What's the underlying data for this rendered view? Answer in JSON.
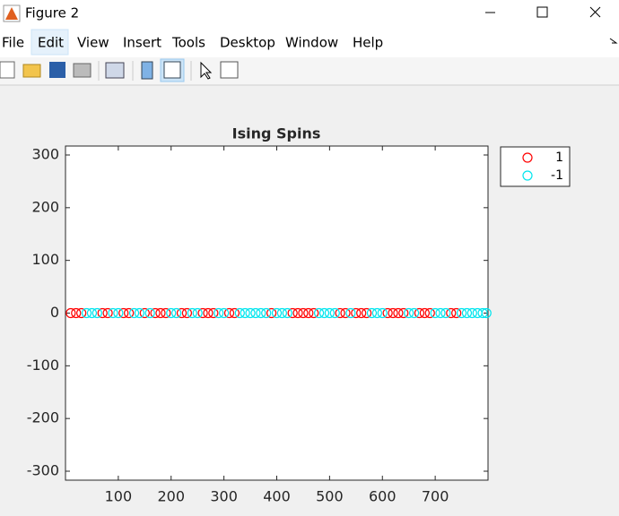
{
  "window": {
    "title": "Figure 2",
    "menu": [
      "File",
      "Edit",
      "View",
      "Insert",
      "Tools",
      "Desktop",
      "Window",
      "Help"
    ]
  },
  "chart_data": {
    "type": "scatter",
    "title": "Ising Spins",
    "series": [
      {
        "name": "1",
        "color": "#ff0000",
        "x": [
          10,
          20,
          30,
          70,
          80,
          110,
          120,
          150,
          170,
          180,
          190,
          220,
          230,
          260,
          270,
          280,
          310,
          320,
          390,
          430,
          440,
          450,
          460,
          470,
          520,
          530,
          550,
          560,
          570,
          610,
          620,
          630,
          640,
          670,
          680,
          690,
          730,
          740
        ],
        "values": [
          0,
          0,
          0,
          0,
          0,
          0,
          0,
          0,
          0,
          0,
          0,
          0,
          0,
          0,
          0,
          0,
          0,
          0,
          0,
          0,
          0,
          0,
          0,
          0,
          0,
          0,
          0,
          0,
          0,
          0,
          0,
          0,
          0,
          0,
          0,
          0,
          0,
          0
        ]
      },
      {
        "name": "-1",
        "color": "#00e5ee",
        "x": [
          40,
          50,
          60,
          90,
          100,
          130,
          140,
          160,
          200,
          210,
          240,
          250,
          290,
          300,
          330,
          340,
          350,
          360,
          370,
          380,
          400,
          410,
          420,
          480,
          490,
          500,
          510,
          540,
          580,
          590,
          600,
          650,
          660,
          700,
          710,
          720,
          750,
          760,
          770,
          780,
          790,
          797
        ],
        "values": [
          0,
          0,
          0,
          0,
          0,
          0,
          0,
          0,
          0,
          0,
          0,
          0,
          0,
          0,
          0,
          0,
          0,
          0,
          0,
          0,
          0,
          0,
          0,
          0,
          0,
          0,
          0,
          0,
          0,
          0,
          0,
          0,
          0,
          0,
          0,
          0,
          0,
          0,
          0,
          0,
          0,
          0
        ]
      }
    ],
    "xlim": [
      0,
      800
    ],
    "xticks": [
      100,
      200,
      300,
      400,
      500,
      600,
      700
    ],
    "ylim": [
      -317,
      317
    ],
    "yticks": [
      -300,
      -200,
      -100,
      0,
      100,
      200,
      300
    ],
    "legend": "outside-top-right",
    "grid": false
  }
}
